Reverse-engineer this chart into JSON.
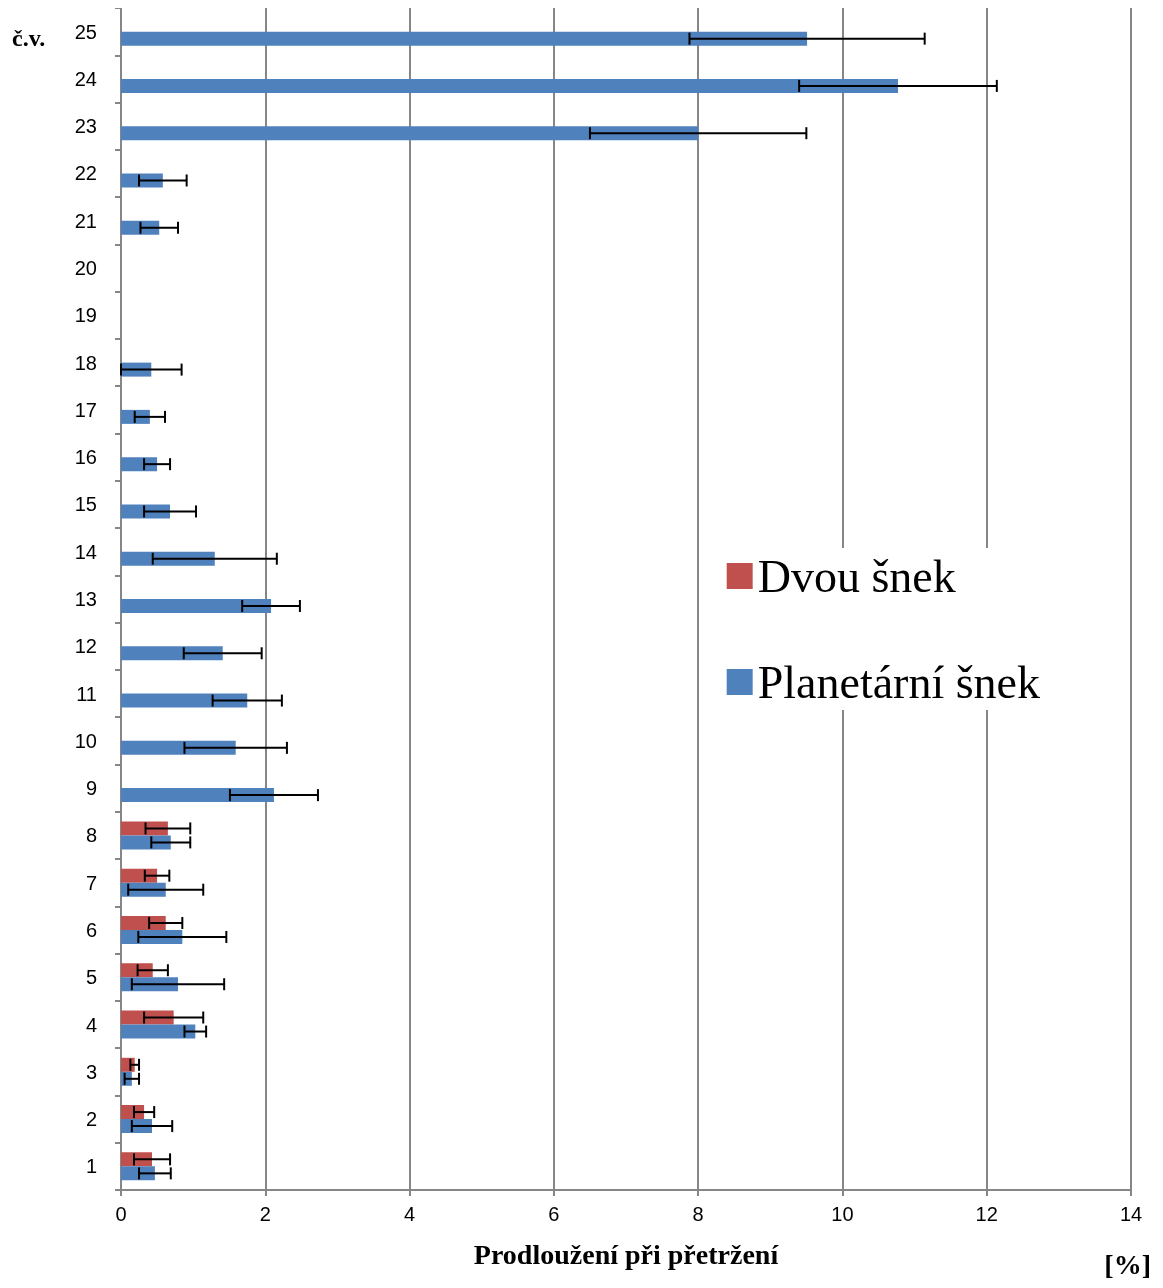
{
  "chart_data": {
    "type": "bar",
    "orientation": "horizontal",
    "ylabel": "č.v.",
    "xlabel": "Prodloužení při přetržení",
    "annotations": [
      "[%]"
    ],
    "categories": [
      "25",
      "24",
      "23",
      "22",
      "21",
      "20",
      "19",
      "18",
      "17",
      "16",
      "15",
      "14",
      "13",
      "12",
      "11",
      "10",
      "9",
      "8",
      "7",
      "6",
      "5",
      "4",
      "3",
      "2",
      "1"
    ],
    "series": [
      {
        "name": "Dvou šnek",
        "color": "#c0504d",
        "values": [
          null,
          null,
          null,
          null,
          null,
          null,
          null,
          null,
          null,
          null,
          null,
          null,
          null,
          null,
          null,
          null,
          null,
          0.65,
          0.5,
          0.62,
          0.44,
          0.73,
          0.19,
          0.32,
          0.43
        ],
        "errors": [
          null,
          null,
          null,
          null,
          null,
          null,
          null,
          null,
          null,
          null,
          null,
          null,
          null,
          null,
          null,
          null,
          null,
          0.31,
          0.17,
          0.23,
          0.21,
          0.41,
          0.06,
          0.14,
          0.25
        ]
      },
      {
        "name": "Planetární šnek",
        "color": "#4f81bd",
        "values": [
          9.51,
          10.77,
          8.0,
          0.58,
          0.53,
          null,
          null,
          0.42,
          0.4,
          0.5,
          0.68,
          1.3,
          2.08,
          1.41,
          1.75,
          1.59,
          2.12,
          0.69,
          0.62,
          0.85,
          0.79,
          1.03,
          0.15,
          0.43,
          0.47
        ],
        "errors": [
          1.63,
          1.37,
          1.5,
          0.33,
          0.26,
          null,
          null,
          0.42,
          0.21,
          0.18,
          0.36,
          0.86,
          0.4,
          0.54,
          0.48,
          0.71,
          0.61,
          0.27,
          0.52,
          0.61,
          0.64,
          0.15,
          0.1,
          0.28,
          0.22
        ]
      }
    ],
    "xlim": [
      0,
      14
    ],
    "xticks": [
      0,
      2,
      4,
      6,
      8,
      10,
      12,
      14
    ],
    "grid": "x",
    "legend": "right"
  }
}
